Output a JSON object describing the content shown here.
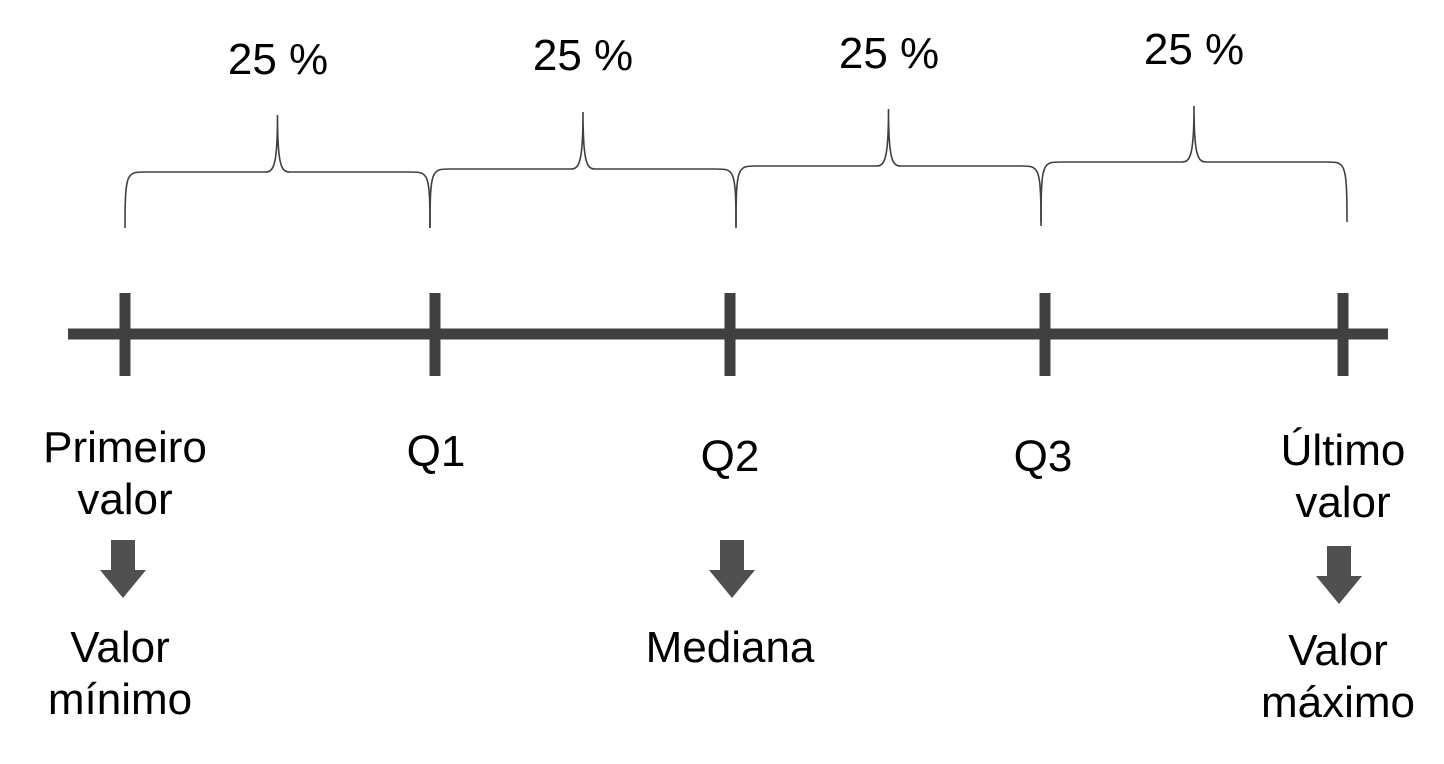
{
  "colors": {
    "line": "#404040",
    "arrow": "#505050",
    "bracket": "#404040",
    "text": "#000000"
  },
  "segments": [
    {
      "percent_label": "25 %"
    },
    {
      "percent_label": "25 %"
    },
    {
      "percent_label": "25 %"
    },
    {
      "percent_label": "25 %"
    }
  ],
  "points": [
    {
      "label_lines": [
        "Primeiro",
        "valor"
      ],
      "result_lines": [
        "Valor",
        "mínimo"
      ]
    },
    {
      "label_lines": [
        "Q1"
      ],
      "result_lines": []
    },
    {
      "label_lines": [
        "Q2"
      ],
      "result_lines": [
        "Mediana"
      ]
    },
    {
      "label_lines": [
        "Q3"
      ],
      "result_lines": []
    },
    {
      "label_lines": [
        "Último",
        "valor"
      ],
      "result_lines": [
        "Valor",
        "máximo"
      ]
    }
  ]
}
